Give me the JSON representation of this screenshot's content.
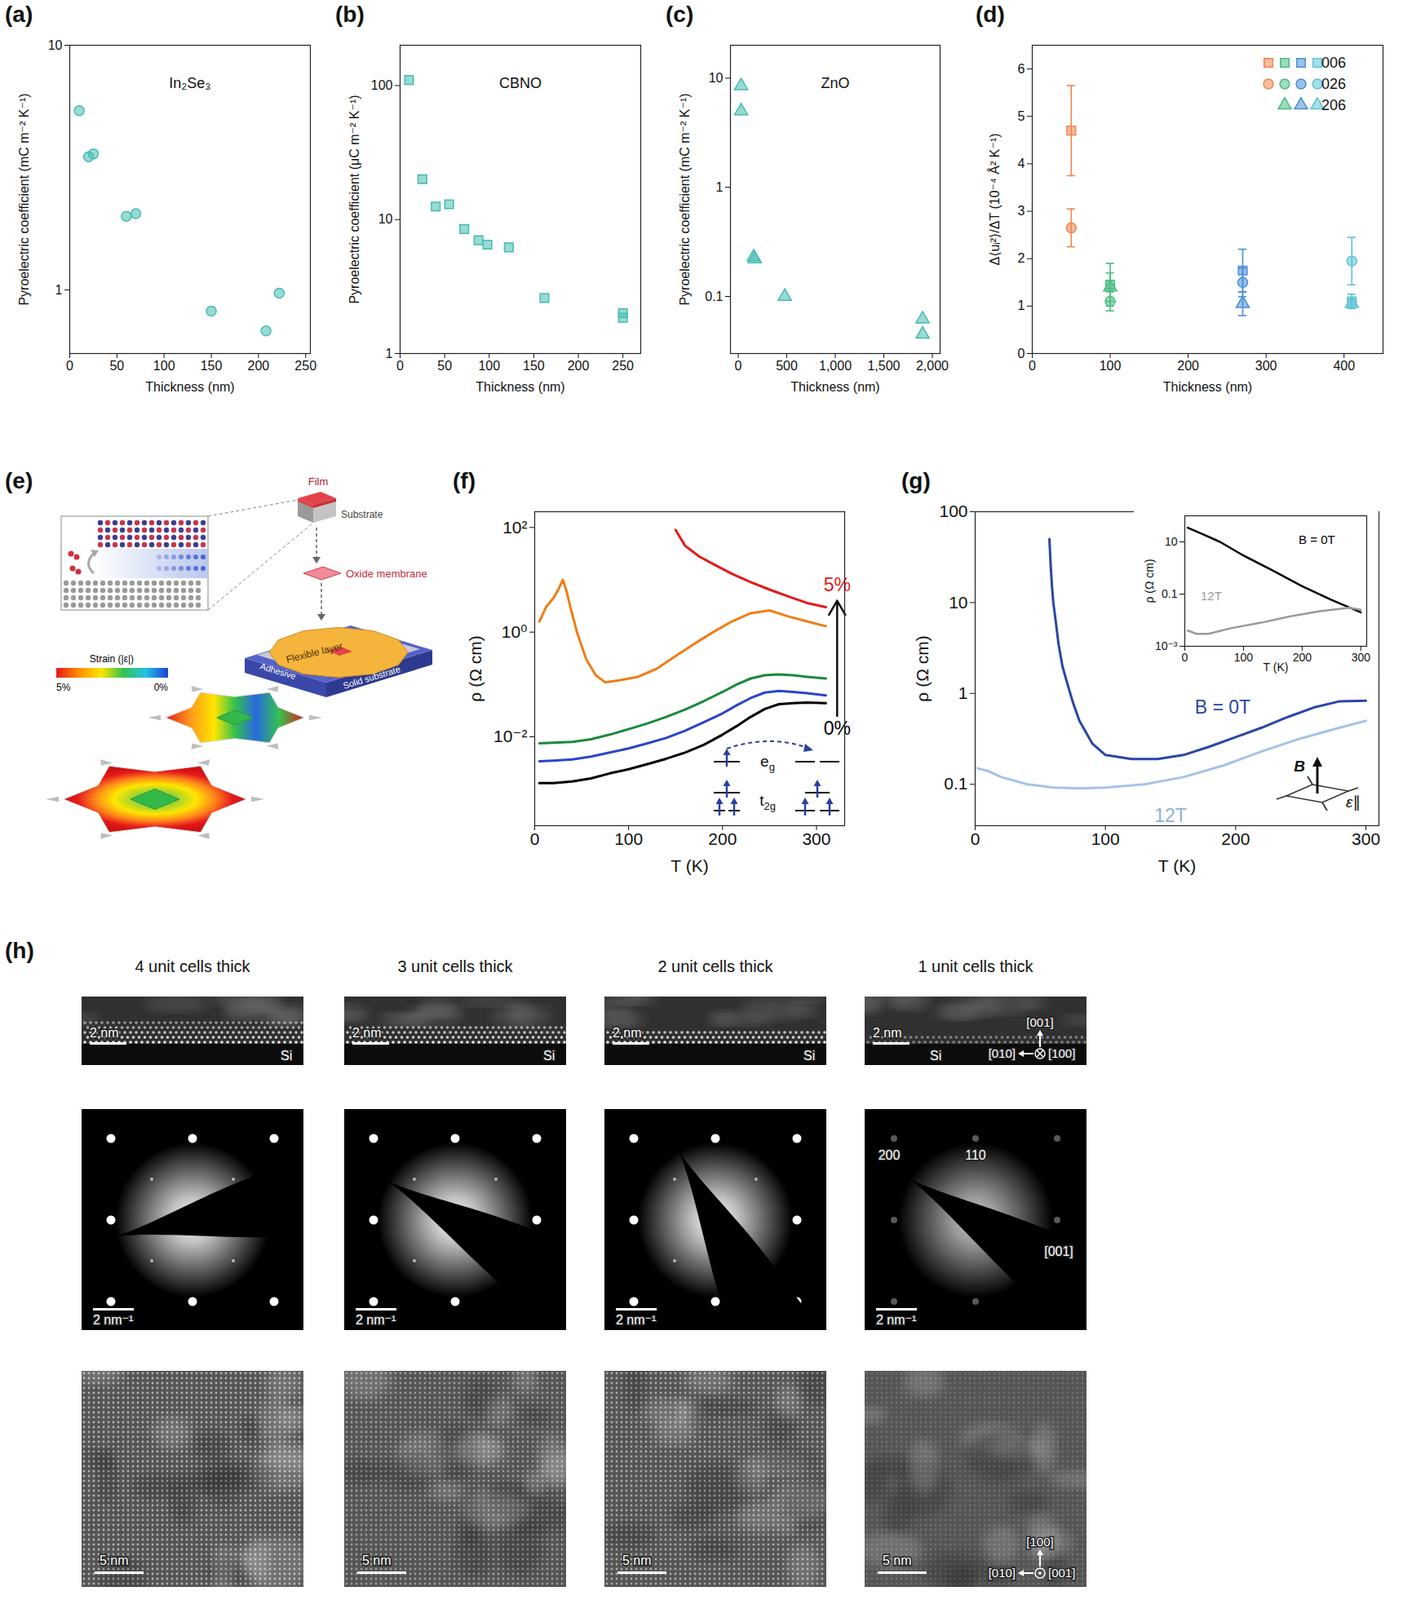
{
  "chart_data": [
    {
      "panel": "(a)",
      "type": "scatter",
      "title": "In₂Se₃",
      "x_label": "Thickness (nm)",
      "y_label": "Pyroelectric coefficient (mC m⁻² K⁻¹)",
      "log": "y",
      "xlim": [
        0,
        255
      ],
      "xticks": [
        0,
        50,
        100,
        150,
        200,
        250
      ],
      "ylim": [
        0.55,
        10
      ],
      "yticks": [
        1,
        10
      ],
      "series": [
        {
          "color": "#45bcb0",
          "marker": "circle",
          "x": [
            10,
            20,
            25,
            60,
            70,
            150,
            208,
            222
          ],
          "values": [
            5.4,
            3.5,
            3.6,
            2.0,
            2.05,
            0.82,
            0.68,
            0.97
          ]
        }
      ]
    },
    {
      "panel": "(b)",
      "type": "scatter",
      "title": "CBNO",
      "x_label": "Thickness (nm)",
      "y_label": "Pyroelectric coefficient (μC m⁻² K⁻¹)",
      "log": "y",
      "xlim": [
        0,
        270
      ],
      "xticks": [
        0,
        50,
        100,
        150,
        200,
        250
      ],
      "ylim": [
        1,
        200
      ],
      "yticks": [
        1,
        10,
        100
      ],
      "series": [
        {
          "color": "#45bcb0",
          "marker": "square",
          "x": [
            10,
            25,
            40,
            55,
            72,
            88,
            98,
            122,
            162,
            250,
            250
          ],
          "values": [
            110,
            20,
            12.5,
            13,
            8.5,
            7,
            6.5,
            6.2,
            2.6,
            2.0,
            1.85
          ]
        }
      ]
    },
    {
      "panel": "(c)",
      "type": "scatter",
      "title": "ZnO",
      "x_label": "Thickness (nm)",
      "y_label": "Pyroelectric coefficient (mC m⁻² K⁻¹)",
      "log": "y",
      "xlim": [
        -80,
        2080
      ],
      "xticks": [
        0,
        500,
        {
          "value": 1000,
          "label": "1,000"
        },
        {
          "value": 1500,
          "label": "1,500"
        },
        {
          "value": 2000,
          "label": "2,000"
        }
      ],
      "ylim": [
        0.03,
        20
      ],
      "yticks": [
        0.1,
        1,
        10
      ],
      "series": [
        {
          "color": "#45bcb0",
          "marker": "triangle",
          "x": [
            30,
            30,
            160,
            170,
            480,
            1900,
            1900
          ],
          "values": [
            8.5,
            5,
            0.23,
            0.22,
            0.1,
            0.062,
            0.045
          ]
        }
      ]
    },
    {
      "panel": "(d)",
      "type": "scatter",
      "x_label": "Thickness (nm)",
      "y_label": "Δ⟨uᵢ²⟩/ΔT (10⁻⁴ Å² K⁻¹)",
      "xlim": [
        0,
        450
      ],
      "xticks": [
        0,
        100,
        200,
        300,
        400
      ],
      "ylim": [
        0,
        6.5
      ],
      "yticks": [
        0,
        1,
        2,
        3,
        4,
        5,
        6
      ],
      "legend": "top-right",
      "series": [
        {
          "name": "006",
          "marker": "square",
          "x": [
            50,
            100,
            270,
            410
          ],
          "values": [
            4.7,
            1.45,
            1.75,
            1.1
          ],
          "errors": [
            0.95,
            0.45,
            0.45,
            0.15
          ],
          "colors": [
            "#ee8650",
            "#4dbd83",
            "#4a8fd6",
            "#5ec3d6"
          ]
        },
        {
          "name": "026",
          "marker": "circle",
          "x": [
            50,
            100,
            270,
            410
          ],
          "values": [
            2.65,
            1.1,
            1.5,
            1.95
          ],
          "errors": [
            0.4,
            0.2,
            0.3,
            0.5
          ],
          "colors": [
            "#ee8650",
            "#4dbd83",
            "#4a8fd6",
            "#5ec3d6"
          ]
        },
        {
          "name": "206",
          "marker": "triangle",
          "x": [
            100,
            270,
            410
          ],
          "values": [
            1.4,
            1.05,
            1.05
          ],
          "errors": [
            0.3,
            0.25,
            0.1
          ],
          "colors": [
            "#4dbd83",
            "#4a8fd6",
            "#5ec3d6"
          ]
        }
      ]
    },
    {
      "panel": "(f)",
      "type": "line",
      "x_label": "T (K)",
      "y_label": "ρ (Ω cm)",
      "log": "y",
      "xlim": [
        0,
        330
      ],
      "xticks": [
        0,
        100,
        200,
        300
      ],
      "ylim": [
        0.0002,
        200
      ],
      "yticks": [
        {
          "value": 0.01,
          "label": "10⁻²"
        },
        {
          "value": 1,
          "label": "10⁰"
        },
        {
          "value": 100,
          "label": "10²"
        }
      ],
      "series": [
        {
          "color": "#000000",
          "x": [
            5,
            20,
            40,
            60,
            80,
            100,
            120,
            140,
            160,
            180,
            200,
            215,
            230,
            245,
            260,
            275,
            290,
            310
          ],
          "values": [
            0.0013,
            0.0013,
            0.0014,
            0.0016,
            0.002,
            0.0024,
            0.003,
            0.0038,
            0.005,
            0.007,
            0.011,
            0.016,
            0.024,
            0.034,
            0.042,
            0.044,
            0.045,
            0.044
          ]
        },
        {
          "color": "#2c44c8",
          "x": [
            5,
            20,
            40,
            60,
            80,
            100,
            120,
            140,
            160,
            180,
            200,
            215,
            230,
            245,
            260,
            275,
            290,
            310
          ],
          "values": [
            0.0034,
            0.0035,
            0.0037,
            0.0042,
            0.005,
            0.006,
            0.0075,
            0.0095,
            0.013,
            0.019,
            0.028,
            0.04,
            0.055,
            0.07,
            0.075,
            0.072,
            0.068,
            0.062
          ]
        },
        {
          "color": "#1a8a3a",
          "x": [
            5,
            20,
            40,
            60,
            80,
            100,
            120,
            140,
            160,
            180,
            200,
            215,
            230,
            245,
            260,
            275,
            290,
            310
          ],
          "values": [
            0.0075,
            0.0077,
            0.008,
            0.009,
            0.011,
            0.014,
            0.018,
            0.024,
            0.033,
            0.048,
            0.072,
            0.1,
            0.13,
            0.15,
            0.155,
            0.15,
            0.14,
            0.13
          ]
        },
        {
          "color": "#f07d16",
          "x": [
            5,
            12,
            20,
            26,
            30,
            34,
            38,
            45,
            55,
            65,
            75,
            90,
            110,
            130,
            150,
            170,
            190,
            210,
            230,
            250,
            270,
            290,
            310
          ],
          "values": [
            1.6,
            3,
            4.5,
            7,
            10,
            6,
            3,
            1,
            0.3,
            0.15,
            0.11,
            0.12,
            0.14,
            0.2,
            0.35,
            0.6,
            1,
            1.6,
            2.3,
            2.6,
            2,
            1.6,
            1.3
          ]
        },
        {
          "color": "#e31a1c",
          "x": [
            150,
            160,
            175,
            190,
            210,
            230,
            250,
            270,
            290,
            310
          ],
          "values": [
            90,
            45,
            28,
            20,
            13,
            9,
            6.5,
            4.8,
            3.6,
            3
          ]
        }
      ],
      "annotations": [
        {
          "text": "5%",
          "x": 322,
          "y": 8,
          "color": "#e31a1c"
        },
        {
          "text": "0%",
          "x": 322,
          "y": 0.014,
          "color": "#000000"
        }
      ],
      "arrows": [
        {
          "x": 322,
          "y1": 0.025,
          "y2": 4
        }
      ],
      "level_labels": {
        "upper": {
          "base": "e",
          "sub": "g"
        },
        "lower": {
          "base": "t",
          "sub": "2g"
        }
      }
    },
    {
      "panel": "(g)",
      "type": "line",
      "x_label": "T (K)",
      "y_label": "ρ (Ω cm)",
      "log": "y",
      "xlim": [
        0,
        310
      ],
      "xticks": [
        0,
        100,
        200,
        300
      ],
      "ylim": [
        0.035,
        100
      ],
      "yticks": [
        0.1,
        1,
        10,
        100
      ],
      "series": [
        {
          "color": "#2a47a4",
          "x": [
            57,
            58,
            59,
            60,
            62,
            64,
            67,
            70,
            75,
            80,
            90,
            100,
            120,
            140,
            160,
            180,
            200,
            220,
            240,
            260,
            280,
            300
          ],
          "values": [
            50,
            25,
            15,
            10,
            6,
            3.5,
            2,
            1.4,
            0.8,
            0.5,
            0.28,
            0.21,
            0.19,
            0.19,
            0.21,
            0.26,
            0.33,
            0.42,
            0.55,
            0.7,
            0.82,
            0.83
          ]
        },
        {
          "color": "#a6c3e6",
          "x": [
            2,
            10,
            20,
            40,
            60,
            80,
            100,
            130,
            160,
            190,
            220,
            250,
            280,
            300
          ],
          "values": [
            0.15,
            0.14,
            0.12,
            0.1,
            0.092,
            0.09,
            0.092,
            0.1,
            0.12,
            0.16,
            0.23,
            0.32,
            0.42,
            0.5
          ]
        }
      ],
      "annotations": [
        {
          "text": "B = 0T",
          "x": 190,
          "y": 0.7,
          "color": "#2a47a4"
        },
        {
          "text": "12T",
          "x": 150,
          "y": 0.045,
          "color": "#8fb0dc"
        }
      ],
      "icon_labels": [
        "B",
        "ε∥"
      ],
      "inset": {
        "type": "line",
        "x_label": "T (K)",
        "y_label": "ρ (Ω cm)",
        "log": "y",
        "xlim": [
          0,
          310
        ],
        "xticks": [
          0,
          100,
          200,
          300
        ],
        "ylim": [
          0.001,
          100
        ],
        "yticks": [
          {
            "value": 0.001,
            "label": "10⁻³"
          },
          0.1,
          10
        ],
        "series": [
          {
            "color": "#000000",
            "x": [
              5,
              30,
              60,
              100,
              150,
              200,
              250,
              300
            ],
            "values": [
              35,
              20,
              10,
              3,
              0.8,
              0.2,
              0.06,
              0.02
            ]
          },
          {
            "color": "#9a9a9a",
            "x": [
              5,
              20,
              40,
              80,
              130,
              180,
              230,
              280,
              300
            ],
            "values": [
              0.004,
              0.003,
              0.003,
              0.005,
              0.008,
              0.014,
              0.022,
              0.03,
              0.025
            ]
          }
        ],
        "annotations": [
          {
            "text": "B = 0T",
            "x": 225,
            "y": 12,
            "color": "#000000"
          },
          {
            "text": "12T",
            "x": 45,
            "y": 0.08,
            "color": "#9a9a9a"
          }
        ]
      }
    }
  ],
  "diagram": {
    "panel": "(e)",
    "labels": {
      "film": "Film",
      "substrate": "Substrate",
      "membrane": "Oxide membrane",
      "flexible": "Flexible layer",
      "adhesive": "Adhesive",
      "solid": "Solid substrate"
    },
    "colorbar": {
      "title": "Strain (|ε|)",
      "range": [
        5,
        0
      ],
      "ticks": [
        {
          "value": 5,
          "label": "5%"
        },
        {
          "value": 0,
          "label": "0%"
        }
      ]
    }
  },
  "images": {
    "panel": "(h)",
    "columns": [
      {
        "title": "4 unit cells thick",
        "unit_cells": 4
      },
      {
        "title": "3 unit cells thick",
        "unit_cells": 3
      },
      {
        "title": "2 unit cells thick",
        "unit_cells": 2
      },
      {
        "title": "1 unit cells thick",
        "unit_cells": 1
      }
    ],
    "cross_section": {
      "scale_bar": "2 nm",
      "substrate": "Si",
      "axes": [
        "[001]",
        "[010]",
        "[100]"
      ]
    },
    "diffraction": {
      "scale_bar": "2 nm⁻¹",
      "spot_labels": [
        "200",
        "110"
      ],
      "axis": "[001]"
    },
    "plan_view": {
      "scale_bar": "5 nm",
      "axes": [
        "[100]",
        "[010]",
        "[001]"
      ]
    }
  }
}
